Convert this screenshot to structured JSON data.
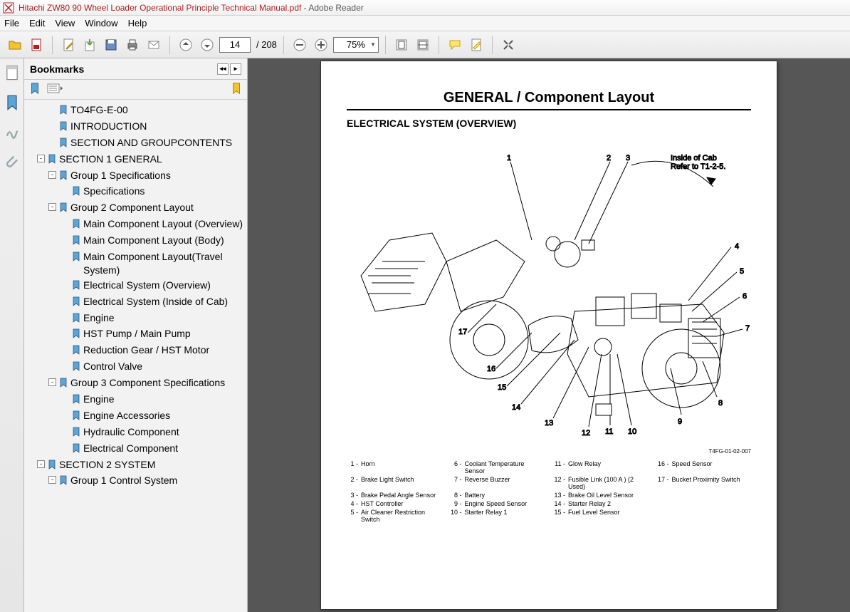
{
  "window": {
    "doc_title": "Hitachi ZW80 90 Wheel Loader Operational Principle Technical Manual.pdf",
    "app_name": "Adobe Reader"
  },
  "menu": [
    "File",
    "Edit",
    "View",
    "Window",
    "Help"
  ],
  "toolbar": {
    "page_current": "14",
    "page_total": "/ 208",
    "zoom": "75%"
  },
  "bookmarks": {
    "header": "Bookmarks",
    "tree": [
      {
        "level": 1,
        "exp": null,
        "label": "TO4FG-E-00"
      },
      {
        "level": 1,
        "exp": null,
        "label": "INTRODUCTION"
      },
      {
        "level": 1,
        "exp": null,
        "label": "SECTION AND GROUPCONTENTS"
      },
      {
        "level": 0,
        "exp": "-",
        "label": "SECTION 1 GENERAL"
      },
      {
        "level": 1,
        "exp": "-",
        "label": "Group 1 Specifications"
      },
      {
        "level": 2,
        "exp": null,
        "label": "Specifications"
      },
      {
        "level": 1,
        "exp": "-",
        "label": "Group 2 Component Layout"
      },
      {
        "level": 2,
        "exp": null,
        "label": "Main Component Layout (Overview)"
      },
      {
        "level": 2,
        "exp": null,
        "label": "Main Component Layout (Body)"
      },
      {
        "level": 2,
        "exp": null,
        "label": "Main Component Layout(Travel System)"
      },
      {
        "level": 2,
        "exp": null,
        "label": "Electrical System (Overview)"
      },
      {
        "level": 2,
        "exp": null,
        "label": "Electrical System (Inside of Cab)"
      },
      {
        "level": 2,
        "exp": null,
        "label": "Engine"
      },
      {
        "level": 2,
        "exp": null,
        "label": "HST Pump / Main Pump"
      },
      {
        "level": 2,
        "exp": null,
        "label": "Reduction Gear / HST Motor"
      },
      {
        "level": 2,
        "exp": null,
        "label": "Control Valve"
      },
      {
        "level": 1,
        "exp": "-",
        "label": "Group 3 Component Specifications"
      },
      {
        "level": 2,
        "exp": null,
        "label": "Engine"
      },
      {
        "level": 2,
        "exp": null,
        "label": "Engine Accessories"
      },
      {
        "level": 2,
        "exp": null,
        "label": "Hydraulic Component"
      },
      {
        "level": 2,
        "exp": null,
        "label": "Electrical Component"
      },
      {
        "level": 0,
        "exp": "-",
        "label": "SECTION 2 SYSTEM"
      },
      {
        "level": 1,
        "exp": "-",
        "label": "Group 1 Control System"
      }
    ]
  },
  "page": {
    "title": "GENERAL / Component Layout",
    "subtitle": "ELECTRICAL SYSTEM (OVERVIEW)",
    "note_line1": "Inside of Cab",
    "note_line2": "Refer to T1-2-5.",
    "fig_id": "T4FG-01-02-007",
    "callouts": [
      "1",
      "2",
      "3",
      "4",
      "5",
      "6",
      "7",
      "8",
      "9",
      "10",
      "11",
      "12",
      "13",
      "14",
      "15",
      "16",
      "17"
    ],
    "legend": [
      {
        "n": "1 -",
        "t": "Horn"
      },
      {
        "n": "2 -",
        "t": "Brake Light Switch"
      },
      {
        "n": "3 -",
        "t": "Brake Pedal Angle Sensor"
      },
      {
        "n": "4 -",
        "t": "HST Controller"
      },
      {
        "n": "5 -",
        "t": "Air Cleaner Restriction Switch"
      },
      {
        "n": "6 -",
        "t": "Coolant Temperature Sensor"
      },
      {
        "n": "7 -",
        "t": "Reverse Buzzer"
      },
      {
        "n": "8 -",
        "t": "Battery"
      },
      {
        "n": "9 -",
        "t": "Engine Speed Sensor"
      },
      {
        "n": "10 -",
        "t": "Starter Relay 1"
      },
      {
        "n": "11 -",
        "t": "Glow Relay"
      },
      {
        "n": "12 -",
        "t": "Fusible Link (100 A ) (2 Used)"
      },
      {
        "n": "13 -",
        "t": "Brake Oil Level Sensor"
      },
      {
        "n": "14 -",
        "t": "Starter Relay 2"
      },
      {
        "n": "15 -",
        "t": "Fuel Level Sensor"
      },
      {
        "n": "16 -",
        "t": "Speed Sensor"
      },
      {
        "n": "17 -",
        "t": "Bucket Proximity Switch"
      }
    ],
    "legend_cols": [
      [
        0,
        1,
        2,
        3,
        4
      ],
      [
        5,
        6,
        7,
        8,
        9
      ],
      [
        10,
        11,
        12,
        13,
        14
      ],
      [
        15,
        16
      ]
    ]
  },
  "colors": {
    "doc_title": "#b01e1e",
    "app_subtitle": "#555555",
    "toolbar_bg_top": "#f5f5f5",
    "toolbar_bg_bot": "#e8e8e8",
    "doc_area_bg": "#565656"
  }
}
